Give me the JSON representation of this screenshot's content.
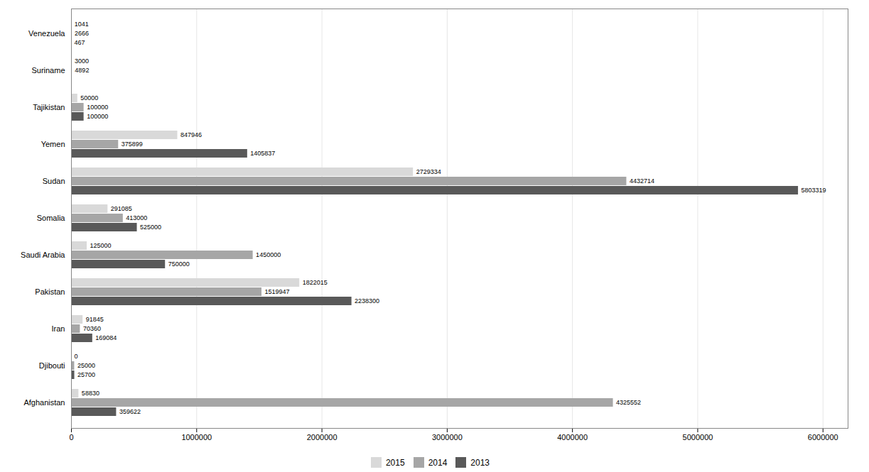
{
  "chart_data": {
    "type": "bar",
    "orientation": "horizontal",
    "categories": [
      "Afghanistan",
      "Djibouti",
      "Iran",
      "Pakistan",
      "Saudi Arabia",
      "Somalia",
      "Sudan",
      "Yemen",
      "Tajikistan",
      "Suriname",
      "Venezuela"
    ],
    "series": [
      {
        "name": "2015",
        "color": "#d9d9d9",
        "values": [
          58830,
          0,
          91845,
          1822015,
          125000,
          291085,
          2729334,
          847946,
          50000,
          3000,
          1041
        ]
      },
      {
        "name": "2014",
        "color": "#a6a6a6",
        "values": [
          4325552,
          25000,
          70360,
          1519947,
          1450000,
          413000,
          4432714,
          375899,
          100000,
          4892,
          2666
        ]
      },
      {
        "name": "2013",
        "color": "#595959",
        "values": [
          359622,
          25700,
          169084,
          2238300,
          750000,
          525000,
          5803319,
          1405837,
          100000,
          0,
          467
        ],
        "value_labels": [
          "359622",
          "25700",
          "169084",
          "2238300",
          "750000",
          "525000",
          "5803319",
          "1405837",
          "100000",
          null,
          "467"
        ]
      }
    ],
    "xlim": [
      0,
      6200000
    ],
    "xticks": [
      0,
      1000000,
      2000000,
      3000000,
      4000000,
      5000000,
      6000000
    ],
    "grid": true,
    "legend": "bottom",
    "data_labels": true
  }
}
